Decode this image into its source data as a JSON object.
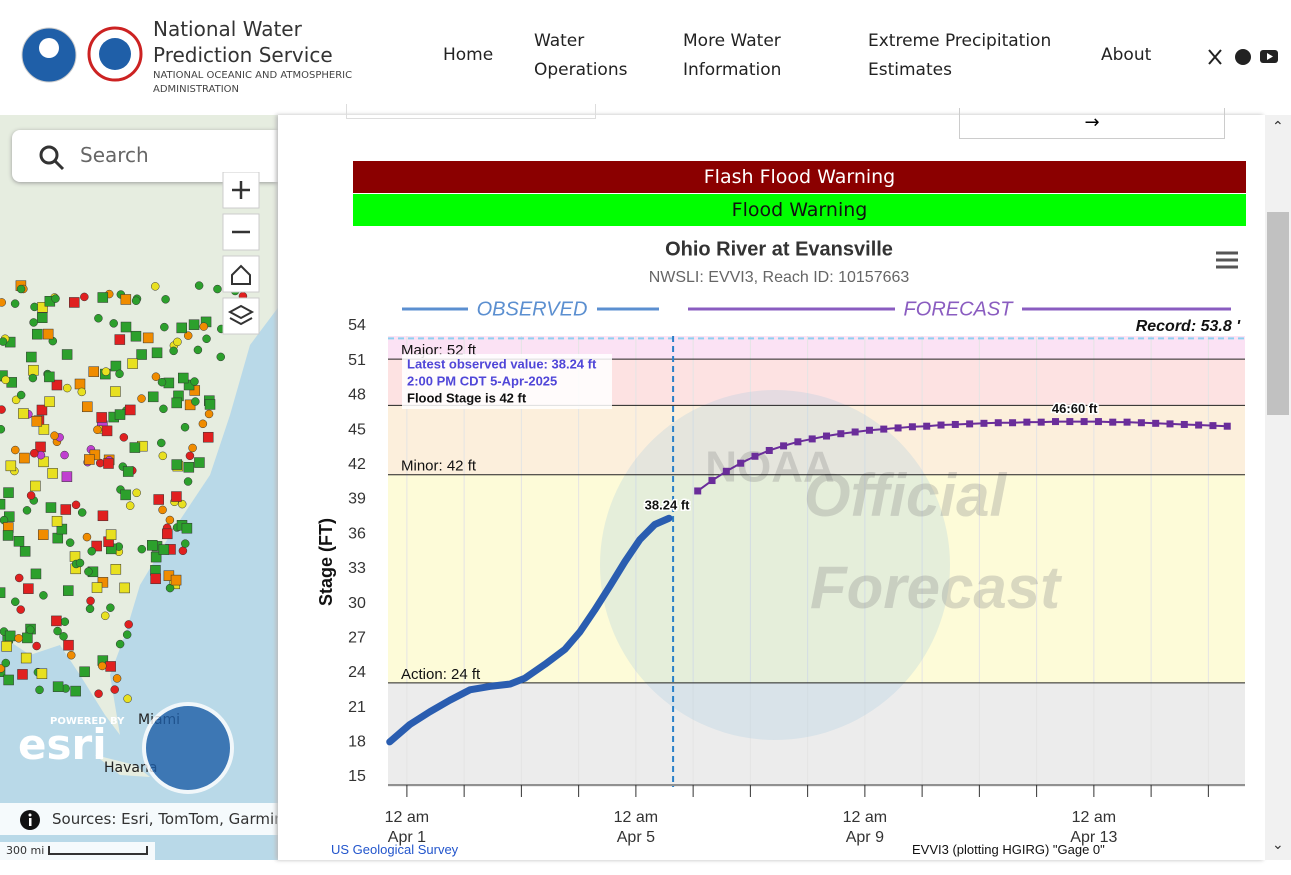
{
  "header": {
    "title": "National Water Prediction Service",
    "subtitle": "NATIONAL OCEANIC AND ATMOSPHERIC ADMINISTRATION"
  },
  "nav": [
    "Home",
    "Water Operations",
    "More Water Information",
    "Extreme Precipitation Estimates",
    "About"
  ],
  "map": {
    "search_placeholder": "Search",
    "attribution": "Sources: Esri, TomTom, Garmin",
    "scale": "300 mi",
    "places": [
      "Miami",
      "Havana"
    ],
    "powered_by": "POWERED BY",
    "esri": "esri"
  },
  "alerts": [
    {
      "text": "Flash Flood Warning",
      "color": "#8b0000"
    },
    {
      "text": "Flood Warning",
      "color": "#00ff00"
    }
  ],
  "chart_data": {
    "type": "line",
    "title": "Ohio River at Evansville",
    "subtitle": "NWSLI: EVVI3, Reach ID: 10157663",
    "y_label": "Stage (FT)",
    "sections": [
      {
        "text": "OBSERVED",
        "color": "#5b8fd0"
      },
      {
        "text": "FORECAST",
        "color": "#8a5cc0"
      }
    ],
    "xlim": [
      -0.33,
      14.64
    ],
    "ylim": [
      15,
      54
    ],
    "yticks": [
      15,
      18,
      21,
      24,
      27,
      30,
      33,
      36,
      39,
      42,
      45,
      48,
      51,
      54
    ],
    "xticks": [
      {
        "value": 0,
        "label": "12 am Apr 1"
      },
      {
        "value": 4,
        "label": "12 am Apr 5"
      },
      {
        "value": 8,
        "label": "12 am Apr 9"
      },
      {
        "value": 12,
        "label": "12 am Apr 13"
      }
    ],
    "xminorticks": [
      1,
      2,
      3,
      5,
      6,
      7,
      9,
      10,
      11,
      13,
      14
    ],
    "base_band_color": "#ececec",
    "thresholds": [
      {
        "label": "Action: 24 ft",
        "value": 24,
        "color": "#fdfbd8"
      },
      {
        "label": "Minor: 42 ft",
        "value": 42,
        "color": "#fcefdc"
      },
      {
        "label": null,
        "value": 48,
        "color": "#fde2e2"
      },
      {
        "label": "Major: 52 ft",
        "value": 52,
        "color": "#fbe2f4"
      }
    ],
    "record": {
      "label": "Record: 53.8 '",
      "value": 53.8,
      "color": "#8fd0f0"
    },
    "forecast_start": 4.65,
    "series": [
      {
        "name": "OBSERVED",
        "color": "#2a5db0",
        "x": [
          -0.3,
          0.05,
          0.4,
          0.75,
          1.1,
          1.45,
          1.8,
          2.06,
          2.41,
          2.76,
          3.02,
          3.28,
          3.55,
          3.81,
          4.07,
          4.33,
          4.58
        ],
        "values": [
          18.9,
          20.4,
          21.5,
          22.5,
          23.4,
          23.7,
          23.9,
          24.4,
          25.6,
          26.9,
          28.4,
          30.3,
          32.4,
          34.5,
          36.4,
          37.7,
          38.24
        ]
      },
      {
        "name": "FORECAST",
        "color": "#6a2d9a",
        "x": [
          5.08,
          5.33,
          5.58,
          5.83,
          6.08,
          6.33,
          6.58,
          6.83,
          7.08,
          7.33,
          7.58,
          7.83,
          8.08,
          8.33,
          8.58,
          8.83,
          9.08,
          9.33,
          9.58,
          9.83,
          10.08,
          10.33,
          10.58,
          10.83,
          11.08,
          11.33,
          11.58,
          11.83,
          12.08,
          12.33,
          12.58,
          12.83,
          13.08,
          13.33,
          13.58,
          13.83,
          14.08,
          14.33
        ],
        "values": [
          40.6,
          41.5,
          42.3,
          43.0,
          43.6,
          44.1,
          44.5,
          44.85,
          45.1,
          45.35,
          45.55,
          45.7,
          45.85,
          45.95,
          46.05,
          46.15,
          46.2,
          46.3,
          46.35,
          46.4,
          46.45,
          46.5,
          46.5,
          46.55,
          46.55,
          46.6,
          46.6,
          46.6,
          46.6,
          46.55,
          46.55,
          46.5,
          46.45,
          46.4,
          46.35,
          46.3,
          46.25,
          46.2
        ]
      }
    ],
    "annotations": [
      {
        "text": "38.24 ft",
        "x": 4.58,
        "y": 38.24
      },
      {
        "text": "46:60 ft",
        "x": 11.7,
        "y": 46.6
      }
    ],
    "tooltip": [
      "Latest observed value: 38.24 ft",
      "2:00 PM CDT 5-Apr-2025",
      "Flood Stage is 42 ft"
    ],
    "watermark": [
      "NOAA",
      "Official",
      "Forecast"
    ]
  },
  "credits": {
    "left": "US Geological Survey",
    "right": "EVVI3 (plotting HGIRG) \"Gage 0\""
  }
}
